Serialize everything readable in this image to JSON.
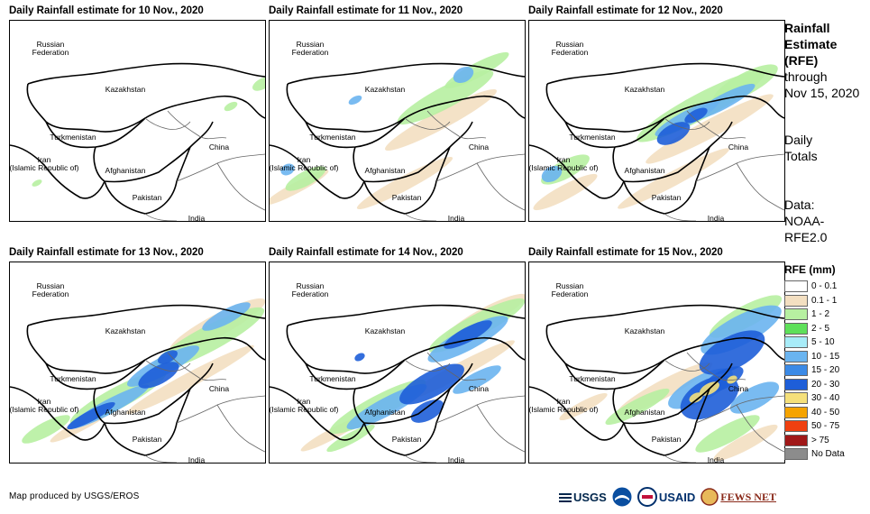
{
  "panels": [
    {
      "title": "Daily Rainfall estimate for 10 Nov., 2020",
      "intensity": 1
    },
    {
      "title": "Daily Rainfall estimate for 11 Nov., 2020",
      "intensity": 2
    },
    {
      "title": "Daily Rainfall estimate for 12 Nov., 2020",
      "intensity": 3
    },
    {
      "title": "Daily Rainfall estimate for 13 Nov., 2020",
      "intensity": 4
    },
    {
      "title": "Daily Rainfall estimate for 14 Nov., 2020",
      "intensity": 5
    },
    {
      "title": "Daily Rainfall estimate for 15 Nov., 2020",
      "intensity": 6
    }
  ],
  "country_labels": {
    "russia": "Russian\nFederation",
    "kazakhstan": "Kazakhstan",
    "turkmenistan": "Turkmenistan",
    "iran": "Iran\n(Islamic Republic of)",
    "afghanistan": "Afghanistan",
    "pakistan": "Pakistan",
    "china": "China",
    "india": "India"
  },
  "side": {
    "title_line1": "Rainfall",
    "title_line2": "Estimate",
    "title_line3": "(RFE)",
    "through": "through",
    "date": "Nov 15, 2020",
    "daily": "Daily",
    "totals": "Totals",
    "data_label": "Data:",
    "source1": "NOAA-",
    "source2": "RFE2.0"
  },
  "legend": {
    "title": "RFE (mm)",
    "items": [
      {
        "label": "0 - 0.1",
        "color": "#ffffff"
      },
      {
        "label": "0.1 - 1",
        "color": "#f3dfc1"
      },
      {
        "label": "1 - 2",
        "color": "#b7f0a1"
      },
      {
        "label": "2 - 5",
        "color": "#5ee05a"
      },
      {
        "label": "5 - 10",
        "color": "#a8ecf8"
      },
      {
        "label": "10 - 15",
        "color": "#6ab4f0"
      },
      {
        "label": "15 - 20",
        "color": "#3b8ae6"
      },
      {
        "label": "20 - 30",
        "color": "#1e5ed8"
      },
      {
        "label": "30 - 40",
        "color": "#f5e07a"
      },
      {
        "label": "40 - 50",
        "color": "#f5a300"
      },
      {
        "label": "50 - 75",
        "color": "#f04010"
      },
      {
        "label": "> 75",
        "color": "#a01818"
      },
      {
        "label": "No Data",
        "color": "#8c8c8c"
      }
    ]
  },
  "footer": "Map produced by USGS/EROS",
  "logos": {
    "usgs": "USGS",
    "noaa": "NOAA",
    "usaid": "USAID",
    "fewsnet": "FEWS NET"
  }
}
